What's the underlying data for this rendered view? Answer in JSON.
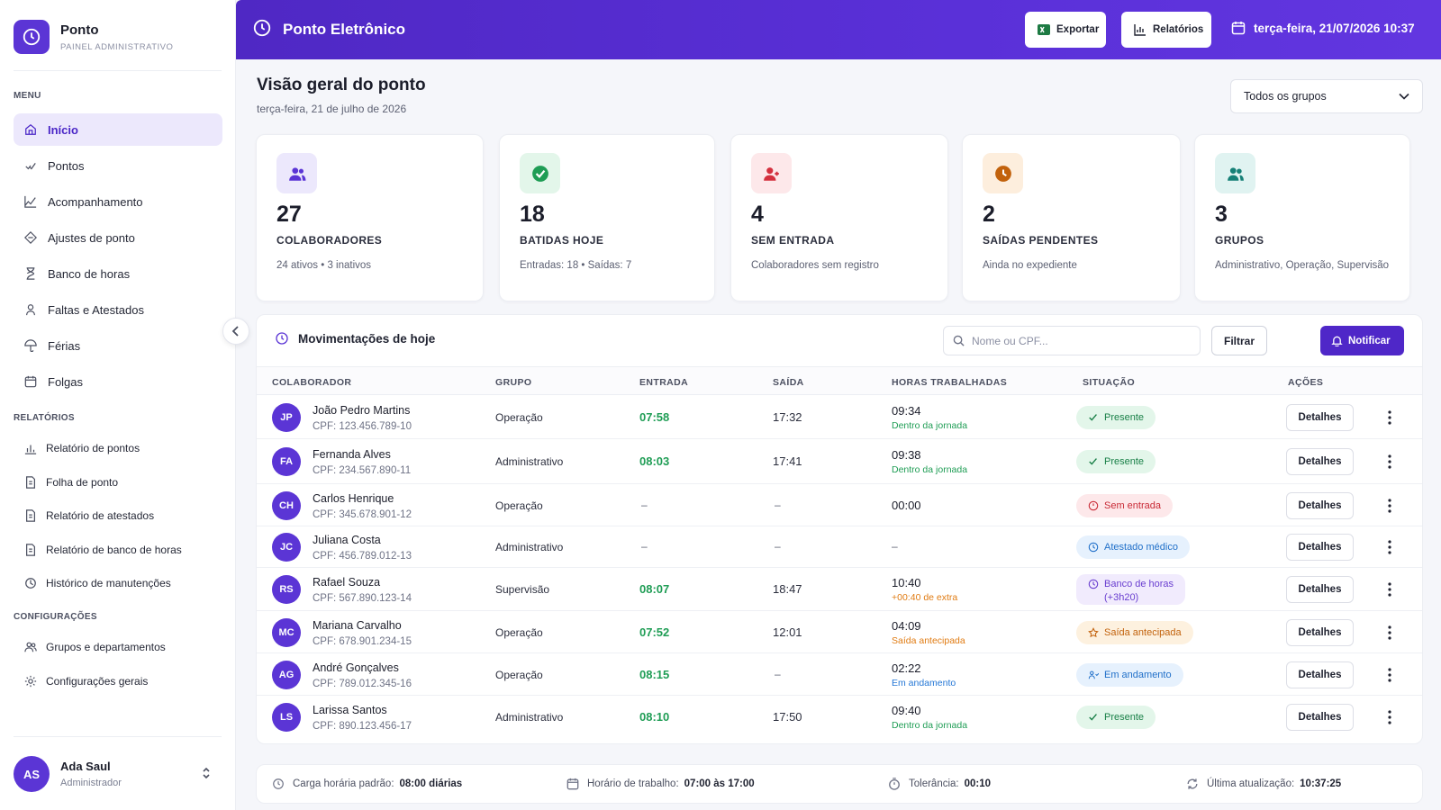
{
  "brand": {
    "name": "Ponto",
    "subtitle": "PAINEL ADMINISTRATIVO"
  },
  "sidebar": {
    "menu_label": "MENU",
    "menu": [
      {
        "label": "Início",
        "icon": "home-icon",
        "active": true
      },
      {
        "label": "Pontos",
        "icon": "check-icon"
      },
      {
        "label": "Acompanhamento",
        "icon": "chart-icon"
      },
      {
        "label": "Ajustes de ponto",
        "icon": "adjust-icon"
      },
      {
        "label": "Banco de horas",
        "icon": "hourglass-icon"
      },
      {
        "label": "Faltas e Atestados",
        "icon": "person-icon"
      },
      {
        "label": "Férias",
        "icon": "umbrella-icon"
      },
      {
        "label": "Folgas",
        "icon": "calendar-icon"
      }
    ],
    "reports_label": "RELATÓRIOS",
    "reports": [
      {
        "label": "Relatório de pontos",
        "icon": "bar-chart-icon"
      },
      {
        "label": "Folha de ponto",
        "icon": "document-icon"
      },
      {
        "label": "Relatório de atestados",
        "icon": "document-icon"
      },
      {
        "label": "Relatório de banco de horas",
        "icon": "document-icon"
      },
      {
        "label": "Histórico de manutenções",
        "icon": "history-icon"
      }
    ],
    "settings_label": "CONFIGURAÇÕES",
    "settings": [
      {
        "label": "Grupos e departamentos",
        "icon": "users-icon"
      },
      {
        "label": "Configurações gerais",
        "icon": "gear-icon"
      }
    ]
  },
  "user": {
    "initials": "AS",
    "name": "Ada Saul",
    "role": "Administrador"
  },
  "header": {
    "title": "Ponto Eletrônico",
    "export_label": "Exportar",
    "reports_label": "Relatórios",
    "datetime": "terça-feira, 21/07/2026 10:37",
    "color": "#5a30d8"
  },
  "page": {
    "title": "Visão geral do ponto",
    "subtitle": "terça-feira, 21 de julho de 2026",
    "group_select": "Todos os grupos"
  },
  "stats": [
    {
      "value": "27",
      "label": "COLABORADORES",
      "desc": "24 ativos • 3 inativos",
      "icon": "users-icon",
      "bg": "#ece8fc",
      "fg": "#5b35d5"
    },
    {
      "value": "18",
      "label": "BATIDAS HOJE",
      "desc": "Entradas: 18 • Saídas: 7",
      "icon": "check-circle-icon",
      "bg": "#e3f6ea",
      "fg": "#1f9d55"
    },
    {
      "value": "4",
      "label": "SEM ENTRADA",
      "desc": "Colaboradores sem registro",
      "icon": "user-alert-icon",
      "bg": "#fde8ea",
      "fg": "#d4303e"
    },
    {
      "value": "2",
      "label": "SAÍDAS PENDENTES",
      "desc": "Ainda no expediente",
      "icon": "clock-icon",
      "bg": "#fdeedd",
      "fg": "#c2620c"
    },
    {
      "value": "3",
      "label": "GRUPOS",
      "desc": "Administrativo, Operação, Supervisão",
      "icon": "group-icon",
      "bg": "#e0f3f1",
      "fg": "#168077"
    }
  ],
  "table": {
    "title": "Movimentações de hoje",
    "search_placeholder": "Nome ou CPF...",
    "filter_label": "Filtrar",
    "notify_label": "Notificar",
    "columns": [
      "COLABORADOR",
      "GRUPO",
      "ENTRADA",
      "SAÍDA",
      "HORAS TRABALHADAS",
      "SITUAÇÃO",
      "AÇÕES"
    ],
    "details_label": "Detalhes",
    "rows": [
      {
        "initials": "JP",
        "name": "João Pedro Martins",
        "cpf": "CPF: 123.456.789-10",
        "group": "Operação",
        "in": "07:58",
        "out": "17:32",
        "hours": "09:34",
        "note": "Dentro da jornada",
        "note_color": "#1f9d55",
        "status": "Presente",
        "status_type": "present"
      },
      {
        "initials": "FA",
        "name": "Fernanda Alves",
        "cpf": "CPF: 234.567.890-11",
        "group": "Administrativo",
        "in": "08:03",
        "out": "17:41",
        "hours": "09:38",
        "note": "Dentro da jornada",
        "note_color": "#1f9d55",
        "status": "Presente",
        "status_type": "present"
      },
      {
        "initials": "CH",
        "name": "Carlos Henrique",
        "cpf": "CPF: 345.678.901-12",
        "group": "Operação",
        "in": "–",
        "out": "–",
        "hours": "00:00",
        "note": "",
        "note_color": "",
        "status": "Sem entrada",
        "status_type": "absent"
      },
      {
        "initials": "JC",
        "name": "Juliana Costa",
        "cpf": "CPF: 456.789.012-13",
        "group": "Administrativo",
        "in": "–",
        "out": "–",
        "hours": "–",
        "note": "",
        "note_color": "",
        "status": "Atestado médico",
        "status_type": "medical"
      },
      {
        "initials": "RS",
        "name": "Rafael Souza",
        "cpf": "CPF: 567.890.123-14",
        "group": "Supervisão",
        "in": "08:07",
        "out": "18:47",
        "hours": "10:40",
        "note": "+00:40 de extra",
        "note_color": "#e07b12",
        "status": "Banco de horas (+3h20)",
        "status_line1": "Banco de horas",
        "status_line2": "(+3h20)",
        "status_type": "bank"
      },
      {
        "initials": "MC",
        "name": "Mariana Carvalho",
        "cpf": "CPF: 678.901.234-15",
        "group": "Operação",
        "in": "07:52",
        "out": "12:01",
        "hours": "04:09",
        "note": "Saída antecipada",
        "note_color": "#e07b12",
        "status": "Saída antecipada",
        "status_type": "early"
      },
      {
        "initials": "AG",
        "name": "André Gonçalves",
        "cpf": "CPF: 789.012.345-16",
        "group": "Operação",
        "in": "08:15",
        "out": "–",
        "hours": "02:22",
        "note": "Em andamento",
        "note_color": "#2477d6",
        "status": "Em andamento",
        "status_type": "progress"
      },
      {
        "initials": "LS",
        "name": "Larissa Santos",
        "cpf": "CPF: 890.123.456-17",
        "group": "Administrativo",
        "in": "08:10",
        "out": "17:50",
        "hours": "09:40",
        "note": "Dentro da jornada",
        "note_color": "#1f9d55",
        "status": "Presente",
        "status_type": "present"
      }
    ]
  },
  "footer": {
    "workload_label": "Carga horária padrão:",
    "workload_value": "08:00 diárias",
    "schedule_label": "Horário de trabalho:",
    "schedule_value": "07:00 às 17:00",
    "tolerance_label": "Tolerância:",
    "tolerance_value": "00:10",
    "updated_label": "Última atualização:",
    "updated_value": "10:37:25"
  }
}
